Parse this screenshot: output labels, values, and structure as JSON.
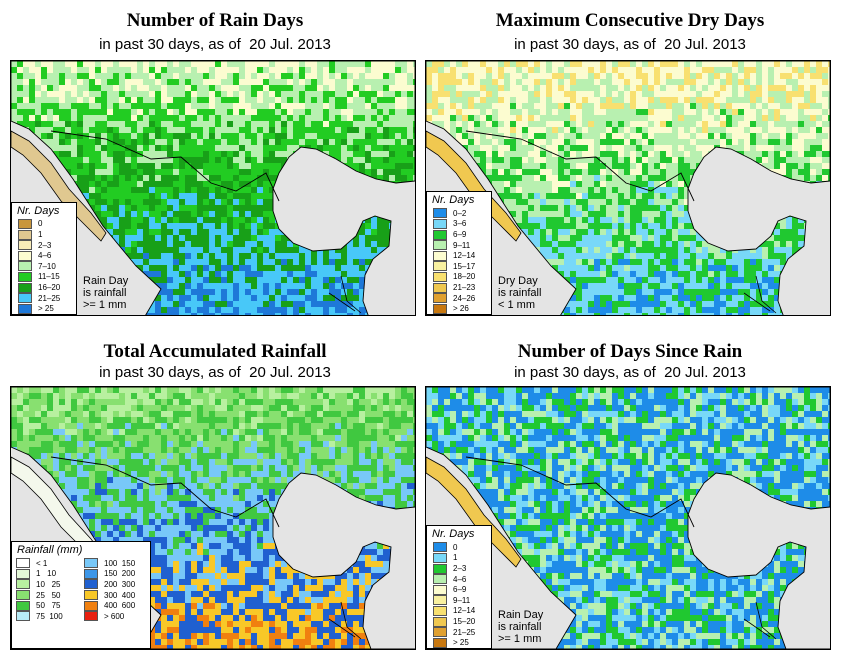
{
  "panels": [
    {
      "title": "Number of Rain Days",
      "subtitle": "in past 30 days, as of  20 Jul. 2013",
      "legend_title": "Nr. Days",
      "legend": [
        {
          "label": "0",
          "color": "#c8963c"
        },
        {
          "label": "1",
          "color": "#e0c890"
        },
        {
          "label": "2–3",
          "color": "#f8ecb8"
        },
        {
          "label": "4–6",
          "color": "#fcfcd0"
        },
        {
          "label": "7–10",
          "color": "#b8f0b0"
        },
        {
          "label": "11–15",
          "color": "#22cc22"
        },
        {
          "label": "16–20",
          "color": "#18a018"
        },
        {
          "label": "21–25",
          "color": "#48c8f8"
        },
        {
          "label": "> 25",
          "color": "#1e78d8"
        }
      ],
      "note": [
        "Rain Day",
        "is rainfall",
        ">= 1 mm"
      ]
    },
    {
      "title": "Maximum Consecutive Dry Days",
      "subtitle": "in past 30 days, as of  20 Jul. 2013",
      "legend_title": "Nr. Days",
      "legend": [
        {
          "label": "0–2",
          "color": "#1e8ce8"
        },
        {
          "label": "3–6",
          "color": "#78d8f8"
        },
        {
          "label": "6–9",
          "color": "#20c830"
        },
        {
          "label": "9–11",
          "color": "#b8f0b0"
        },
        {
          "label": "12–14",
          "color": "#fcfcd0"
        },
        {
          "label": "15–17",
          "color": "#f8f0a0"
        },
        {
          "label": "18–20",
          "color": "#f8e070"
        },
        {
          "label": "21–23",
          "color": "#f0c850"
        },
        {
          "label": "24–26",
          "color": "#e0a030"
        },
        {
          "label": "> 26",
          "color": "#c87810"
        }
      ],
      "note": [
        "Dry Day",
        "is rainfall",
        "< 1 mm"
      ]
    },
    {
      "title": "Total Accumulated Rainfall",
      "subtitle": "in past 30 days, as of  20 Jul. 2013",
      "legend_title": "Rainfall (mm)",
      "legend_col1": [
        {
          "label": "< 1",
          "color": "#ffffff"
        },
        {
          "label": "1   10",
          "color": "#e4f8d8"
        },
        {
          "label": "10   25",
          "color": "#b8f0a0"
        },
        {
          "label": "25   50",
          "color": "#88e070"
        },
        {
          "label": "50   75",
          "color": "#40c840"
        },
        {
          "label": "75  100",
          "color": "#b8ecf8"
        }
      ],
      "legend_col2": [
        {
          "label": "100  150",
          "color": "#78c8f8"
        },
        {
          "label": "150  200",
          "color": "#3c96e8"
        },
        {
          "label": "200  300",
          "color": "#2060d0"
        },
        {
          "label": "300  400",
          "color": "#f8c828"
        },
        {
          "label": "400  600",
          "color": "#f08010"
        },
        {
          "label": "> 600",
          "color": "#e82010"
        }
      ]
    },
    {
      "title": "Number of Days Since Rain",
      "subtitle": "in past 30 days, as of  20 Jul. 2013",
      "legend_title": "Nr. Days",
      "legend": [
        {
          "label": "0",
          "color": "#1e8ce8"
        },
        {
          "label": "1",
          "color": "#78d8f8"
        },
        {
          "label": "2–3",
          "color": "#20c830"
        },
        {
          "label": "4–6",
          "color": "#b8f0b0"
        },
        {
          "label": "6–9",
          "color": "#fcfcd0"
        },
        {
          "label": "9–11",
          "color": "#f8f0a0"
        },
        {
          "label": "12–14",
          "color": "#f8e070"
        },
        {
          "label": "15–20",
          "color": "#f0c850"
        },
        {
          "label": "21–25",
          "color": "#e0a030"
        },
        {
          "label": "> 25",
          "color": "#c87810"
        }
      ],
      "note": [
        "Rain Day",
        "is rainfall",
        ">= 1 mm"
      ]
    }
  ]
}
